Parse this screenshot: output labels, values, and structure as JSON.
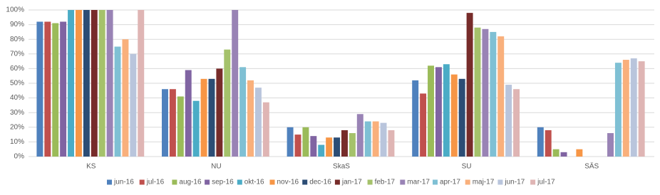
{
  "chart_data": {
    "type": "bar",
    "categories": [
      "KS",
      "NU",
      "SkaS",
      "SU",
      "SÄS"
    ],
    "series": [
      {
        "name": "jun-16",
        "color": "#4f81bd",
        "values": [
          92,
          46,
          20,
          52,
          20
        ]
      },
      {
        "name": "jul-16",
        "color": "#c0504d",
        "values": [
          92,
          46,
          15,
          43,
          18
        ]
      },
      {
        "name": "aug-16",
        "color": "#9bbb59",
        "values": [
          91,
          41,
          20,
          62,
          5
        ]
      },
      {
        "name": "sep-16",
        "color": "#8064a2",
        "values": [
          92,
          59,
          14,
          61,
          3
        ]
      },
      {
        "name": "okt-16",
        "color": "#4bacc6",
        "values": [
          100,
          38,
          8,
          63,
          null
        ]
      },
      {
        "name": "nov-16",
        "color": "#f79646",
        "values": [
          100,
          53,
          13,
          56,
          5
        ]
      },
      {
        "name": "dec-16",
        "color": "#2c4d75",
        "values": [
          100,
          53,
          13,
          53,
          null
        ]
      },
      {
        "name": "jan-17",
        "color": "#772c2a",
        "values": [
          100,
          60,
          18,
          98,
          null
        ]
      },
      {
        "name": "feb-17",
        "color": "#a5c26b",
        "values": [
          100,
          73,
          16,
          88,
          null
        ]
      },
      {
        "name": "mar-17",
        "color": "#9983b5",
        "values": [
          100,
          100,
          29,
          87,
          16
        ]
      },
      {
        "name": "apr-17",
        "color": "#7fc0d4",
        "values": [
          75,
          61,
          24,
          85,
          64
        ]
      },
      {
        "name": "maj-17",
        "color": "#f9b07c",
        "values": [
          80,
          52,
          24,
          82,
          66
        ]
      },
      {
        "name": "jun-17",
        "color": "#b9c5dc",
        "values": [
          70,
          47,
          23,
          49,
          67
        ]
      },
      {
        "name": "jul-17",
        "color": "#dfb5b4",
        "values": [
          100,
          37,
          18,
          46,
          65
        ]
      }
    ],
    "ylim": [
      0,
      100
    ],
    "yticks": [
      {
        "value": 0,
        "label": "0%"
      },
      {
        "value": 10,
        "label": "10%"
      },
      {
        "value": 20,
        "label": "20%"
      },
      {
        "value": 30,
        "label": "30%"
      },
      {
        "value": 40,
        "label": "40%"
      },
      {
        "value": 50,
        "label": "50%"
      },
      {
        "value": 60,
        "label": "60%"
      },
      {
        "value": 70,
        "label": "70%"
      },
      {
        "value": 80,
        "label": "80%"
      },
      {
        "value": 90,
        "label": "90%"
      },
      {
        "value": 100,
        "label": "100%"
      }
    ],
    "grid": true
  }
}
